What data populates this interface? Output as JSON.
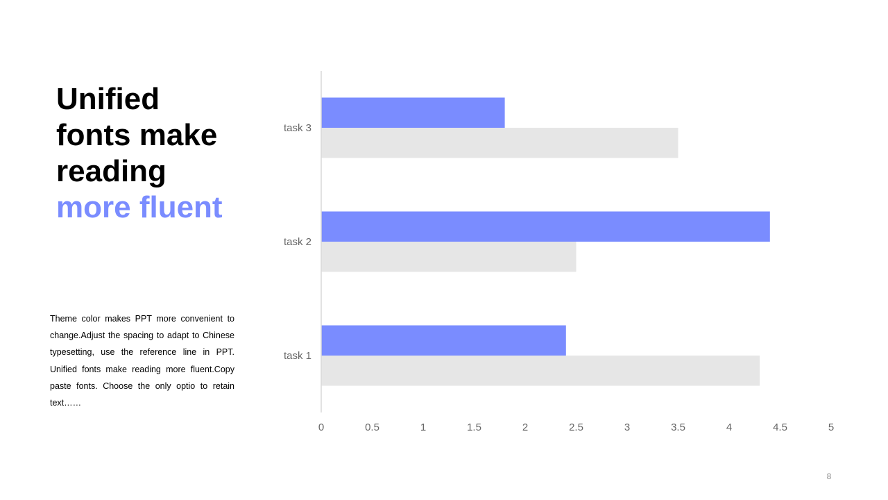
{
  "headline": {
    "lines": [
      "Unified",
      "fonts make",
      "reading"
    ],
    "accent": "more fluent"
  },
  "body_text": "Theme  color makes PPT more convenient to change.Adjust the spacing to adapt to Chinese typesetting, use the reference line in PPT. Unified fonts make reading more fluent.Copy paste fonts. Choose the only optio to retain text……",
  "page_number": "8",
  "colors": {
    "accent": "#7a8cff",
    "secondary": "#e6e6e6",
    "axis_text": "#666666"
  },
  "chart_data": {
    "type": "bar",
    "orientation": "horizontal",
    "categories": [
      "task 1",
      "task 2",
      "task 3"
    ],
    "series": [
      {
        "values": [
          2.4,
          4.4,
          1.8
        ],
        "color": "#7a8cff"
      },
      {
        "values": [
          4.3,
          2.5,
          3.5
        ],
        "color": "#e6e6e6"
      }
    ],
    "xlim": [
      0,
      5
    ],
    "xticks": [
      "0",
      "0.5",
      "1",
      "1.5",
      "2",
      "2.5",
      "3",
      "3.5",
      "4",
      "4.5",
      "5"
    ],
    "grid": false,
    "legend": "none"
  }
}
